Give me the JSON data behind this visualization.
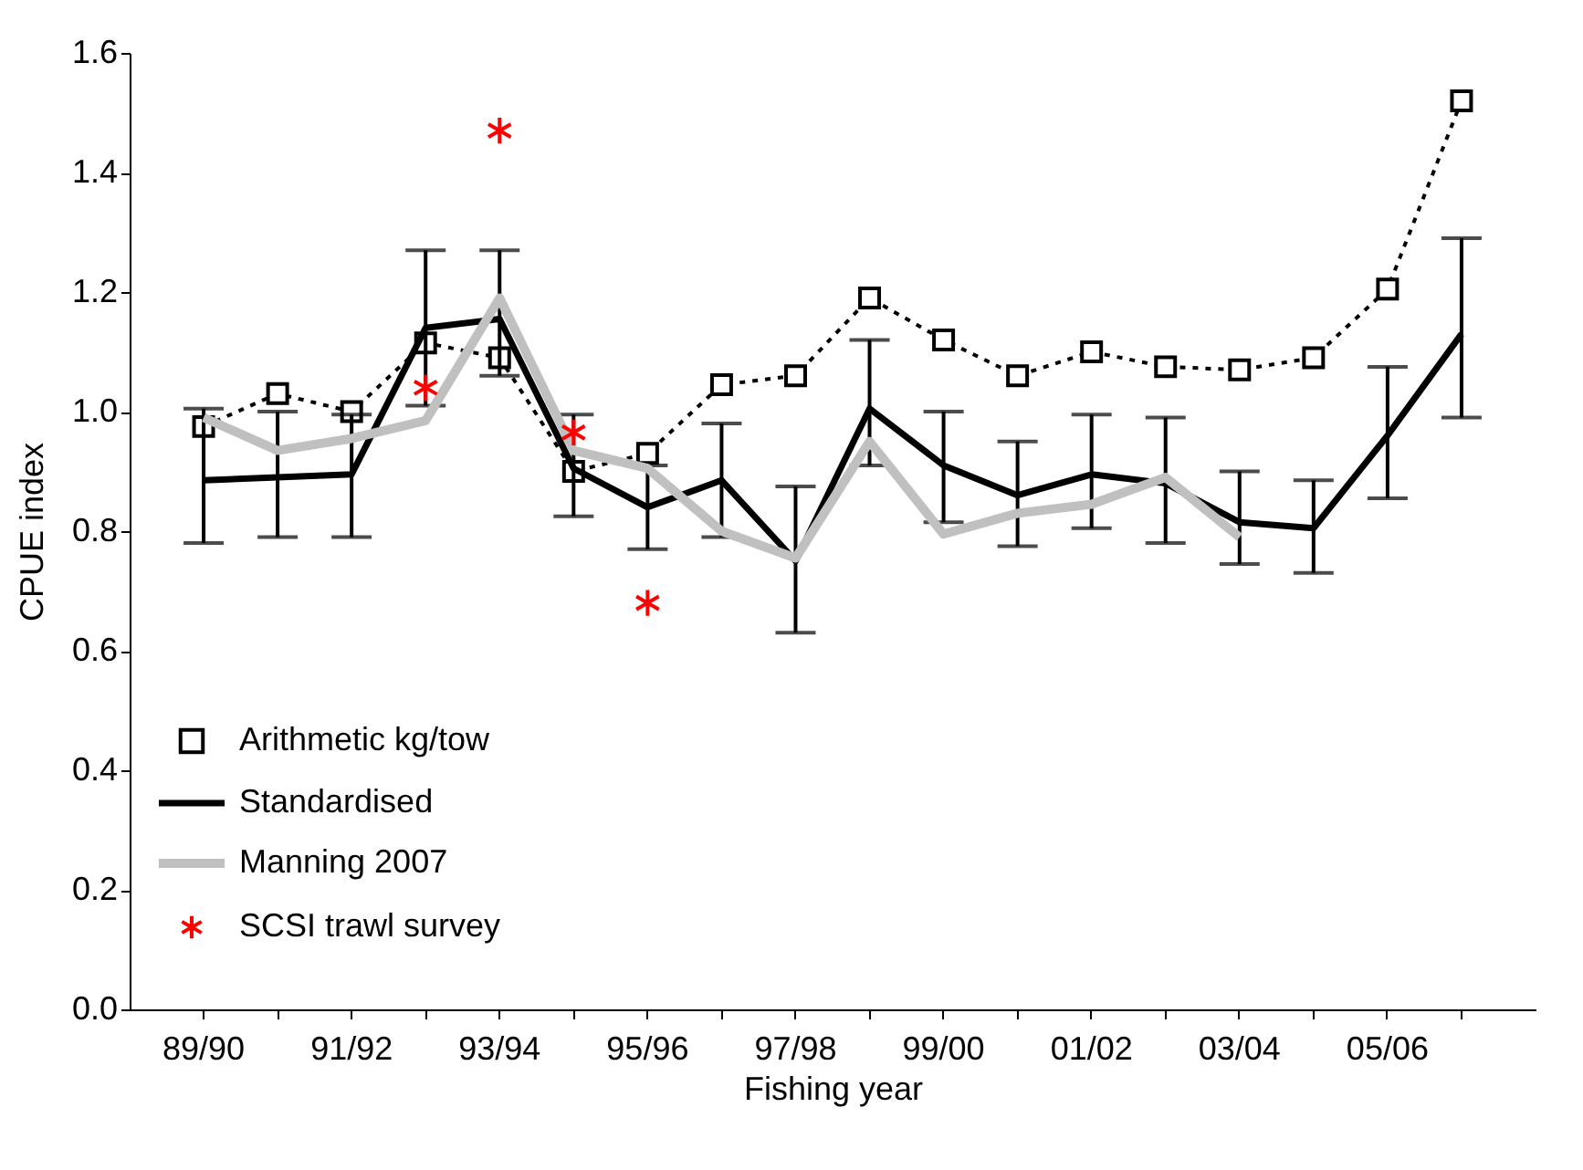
{
  "chart_data": {
    "type": "line",
    "xlabel": "Fishing year",
    "ylabel": "CPUE index",
    "categories": [
      "89/90",
      null,
      "91/92",
      null,
      "93/94",
      null,
      "95/96",
      null,
      "97/98",
      null,
      "99/00",
      null,
      "01/02",
      null,
      "03/04",
      null,
      "05/06",
      null
    ],
    "ylim": [
      0,
      1.6
    ],
    "yticks": [
      {
        "value": 0,
        "label": "0.0"
      },
      0.2,
      0.4,
      0.6,
      0.8,
      {
        "value": 1,
        "label": "1.0"
      },
      1.2,
      1.4,
      1.6
    ],
    "legend": "bottom left",
    "grid": false,
    "series": [
      {
        "name": "Arithmetic kg/tow",
        "color": "#000000",
        "marker": "square",
        "line_style": "dotted",
        "values": [
          0.975,
          1.03,
          1.0,
          1.115,
          1.09,
          0.9,
          0.93,
          1.045,
          1.06,
          1.19,
          1.12,
          1.06,
          1.1,
          1.075,
          1.07,
          1.09,
          1.205,
          1.52
        ]
      },
      {
        "name": "Standardised",
        "color": "#000000",
        "line_style": "solid",
        "values": [
          0.885,
          0.89,
          0.895,
          1.14,
          1.155,
          0.905,
          0.84,
          0.885,
          0.75,
          1.005,
          0.91,
          0.86,
          0.895,
          0.88,
          0.815,
          0.805,
          0.96,
          1.13
        ],
        "errors": [
          [
            0.78,
            1.005
          ],
          [
            0.79,
            1.0
          ],
          [
            0.79,
            0.995
          ],
          [
            1.01,
            1.27
          ],
          [
            1.06,
            1.27
          ],
          [
            0.825,
            0.995
          ],
          [
            0.77,
            0.91
          ],
          [
            0.79,
            0.98
          ],
          [
            0.63,
            0.875
          ],
          [
            0.91,
            1.12
          ],
          [
            0.815,
            1.0
          ],
          [
            0.775,
            0.95
          ],
          [
            0.805,
            0.995
          ],
          [
            0.78,
            0.99
          ],
          [
            0.745,
            0.9
          ],
          [
            0.73,
            0.885
          ],
          [
            0.855,
            1.075
          ],
          [
            0.99,
            1.29
          ]
        ]
      },
      {
        "name": "Manning 2007",
        "color": "#c0c0c0",
        "line_style": "solid",
        "values": [
          0.99,
          0.935,
          0.955,
          0.985,
          1.19,
          0.935,
          0.905,
          0.8,
          0.755,
          0.95,
          0.795,
          0.83,
          0.845,
          0.89,
          0.79,
          null,
          null,
          null
        ]
      },
      {
        "name": "SCSI trawl survey",
        "type": "scatter",
        "color": "#ff0000",
        "marker": "cross",
        "values": [
          null,
          null,
          null,
          1.04,
          1.47,
          0.965,
          0.68,
          null,
          null,
          null,
          null,
          null,
          null,
          null,
          null,
          null,
          null,
          null
        ]
      }
    ]
  }
}
